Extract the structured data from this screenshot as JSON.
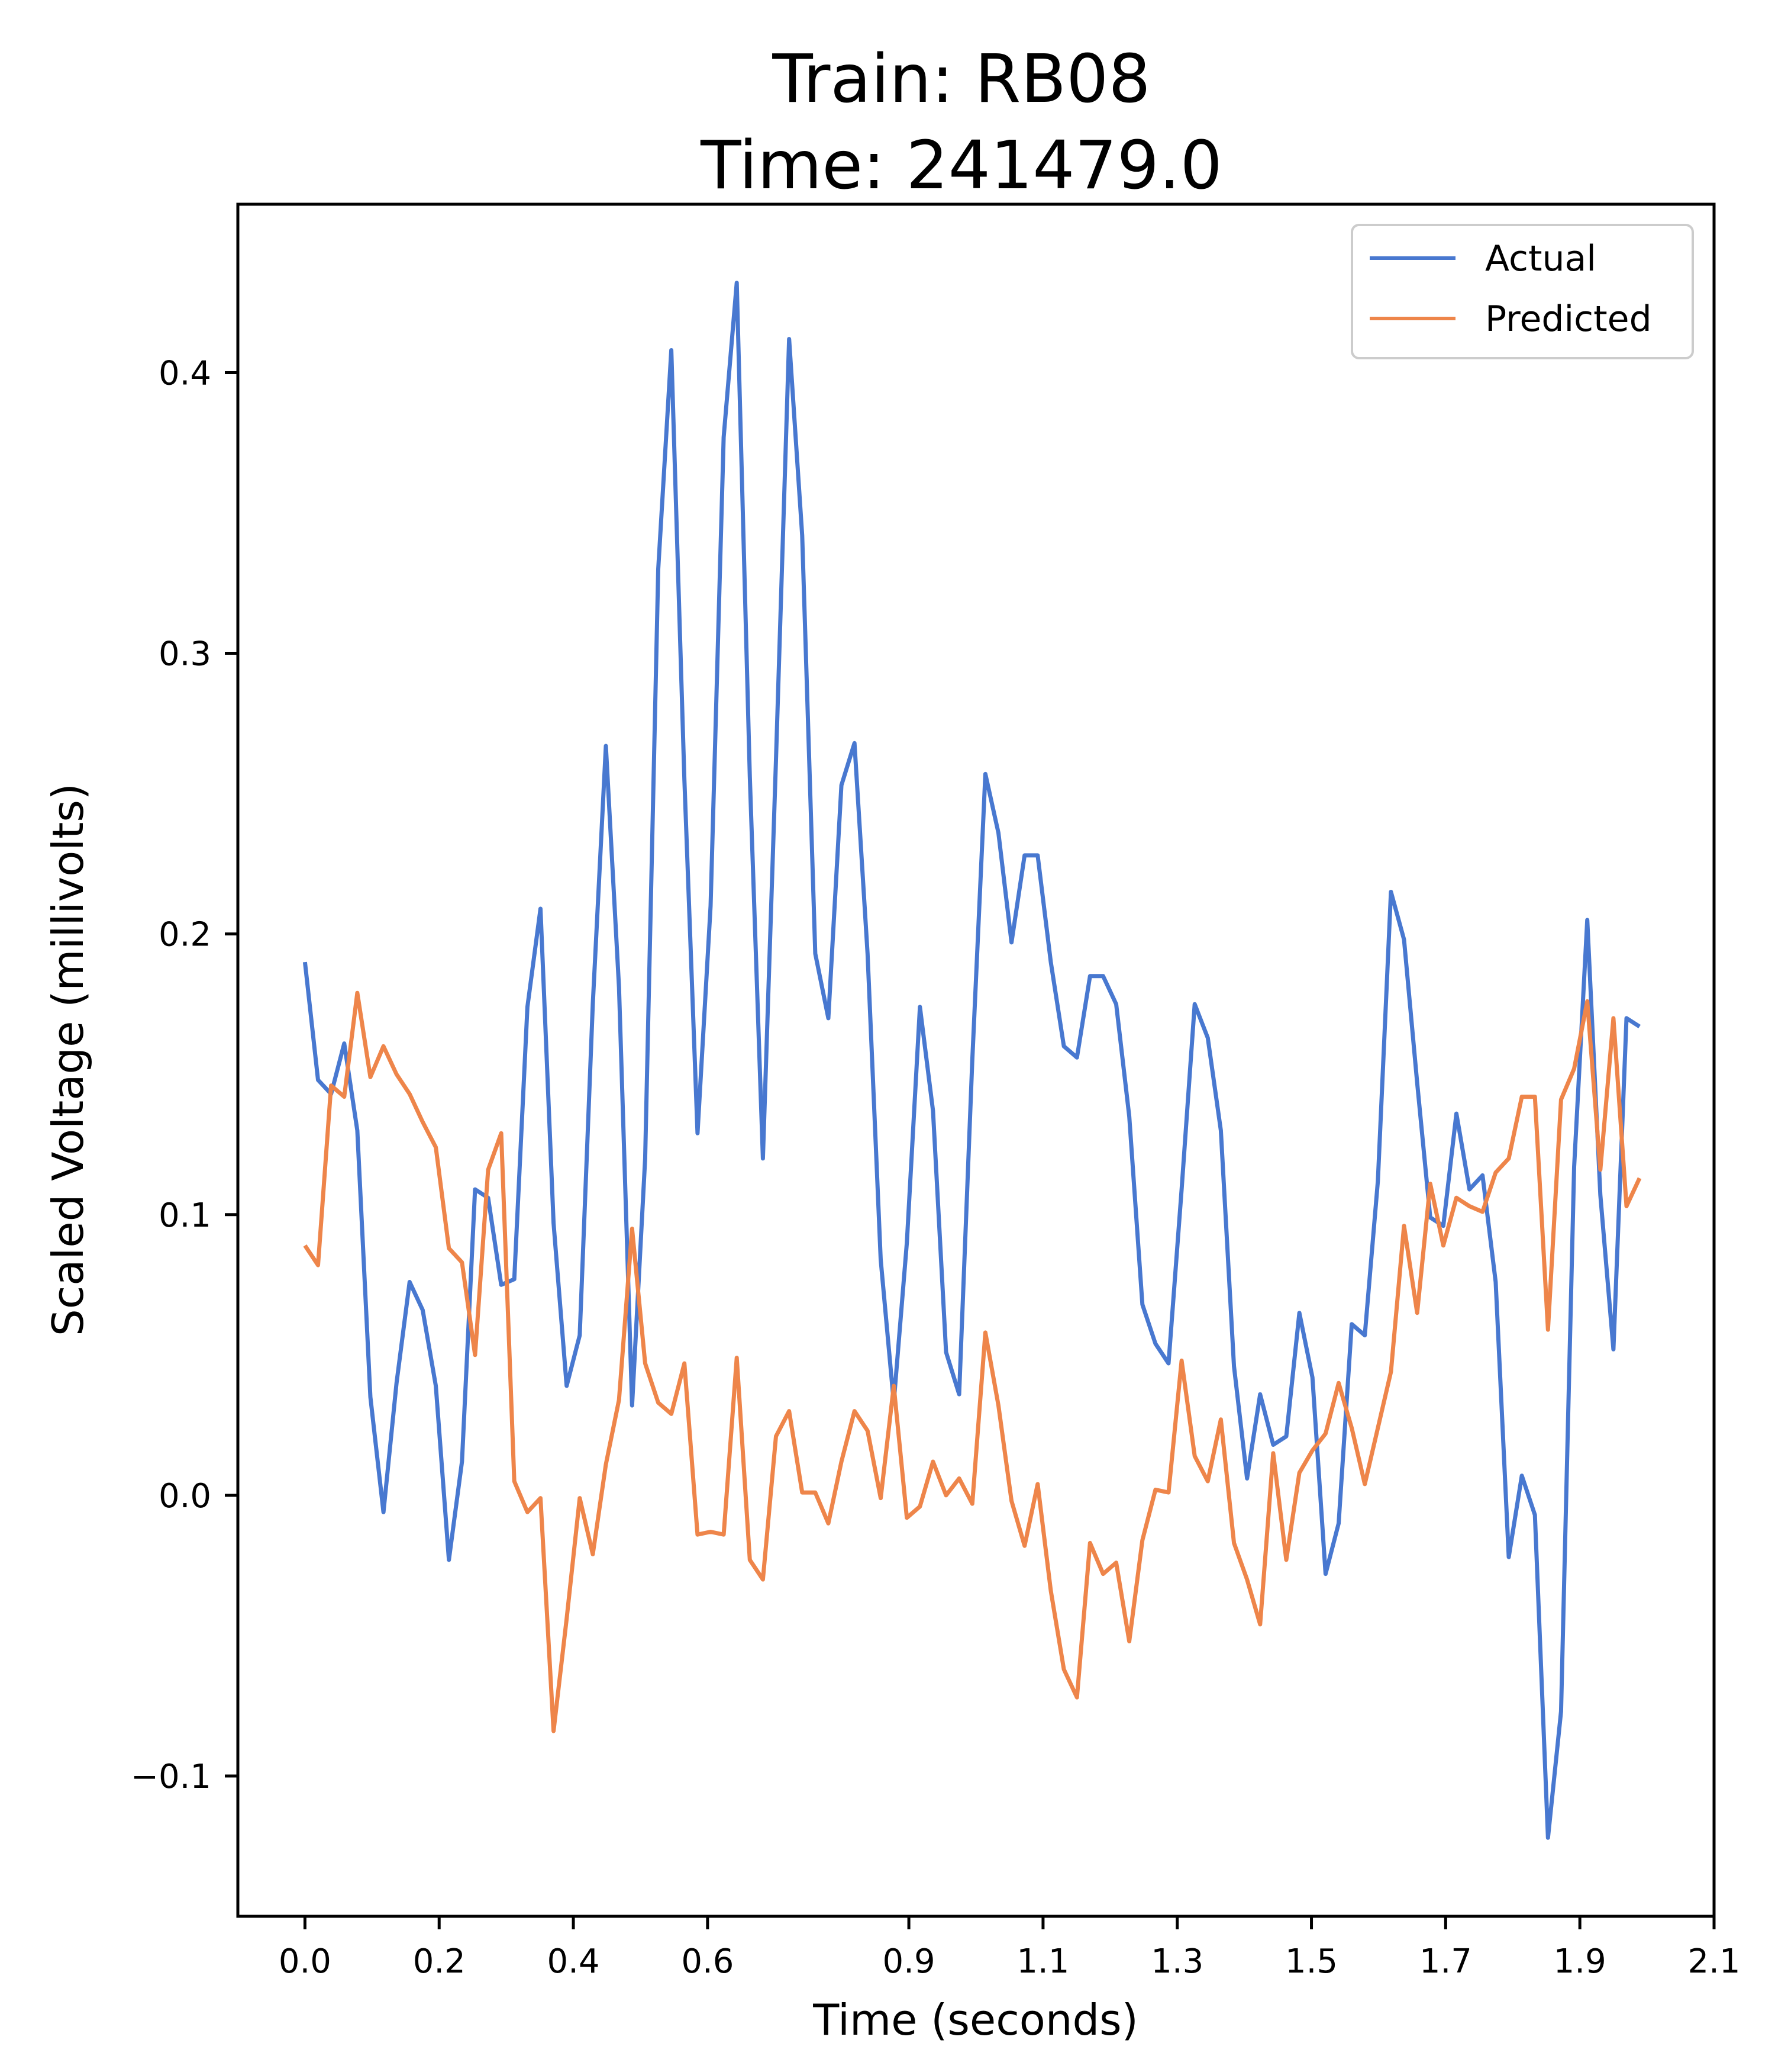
{
  "chart_data": {
    "type": "line",
    "title_line1": "Train: RB08",
    "title_line2": "Time: 241479.0",
    "xlabel": "Time (seconds)",
    "ylabel": "Scaled Voltage (millivolts)",
    "xlim": [
      -0.1,
      2.1
    ],
    "ylim": [
      -0.15,
      0.46
    ],
    "xticks": [
      0.0,
      0.2,
      0.4,
      0.6,
      0.9,
      1.1,
      1.3,
      1.5,
      1.7,
      1.9,
      2.1
    ],
    "xtick_labels": [
      "0.0",
      "0.2",
      "0.4",
      "0.6",
      "0.9",
      "1.1",
      "1.3",
      "1.5",
      "1.7",
      "1.9",
      "2.1"
    ],
    "yticks": [
      -0.1,
      0.0,
      0.1,
      0.2,
      0.3,
      0.4
    ],
    "ytick_labels": [
      "−0.1",
      "0.0",
      "0.1",
      "0.2",
      "0.3",
      "0.4"
    ],
    "legend_position": "top-right",
    "grid": false,
    "x_step": 0.0195,
    "series": [
      {
        "name": "Actual",
        "color": "#4878d0",
        "values": [
          0.19,
          0.148,
          0.143,
          0.161,
          0.13,
          0.035,
          -0.006,
          0.04,
          0.076,
          0.066,
          0.039,
          -0.023,
          0.012,
          0.109,
          0.106,
          0.075,
          0.077,
          0.174,
          0.209,
          0.097,
          0.039,
          0.057,
          0.175,
          0.267,
          0.181,
          0.032,
          0.12,
          0.33,
          0.408,
          0.255,
          0.129,
          0.21,
          0.377,
          0.432,
          0.256,
          0.12,
          0.262,
          0.412,
          0.342,
          0.193,
          0.17,
          0.253,
          0.268,
          0.193,
          0.084,
          0.033,
          0.09,
          0.174,
          0.137,
          0.051,
          0.036,
          0.155,
          0.257,
          0.236,
          0.197,
          0.228,
          0.228,
          0.19,
          0.16,
          0.156,
          0.185,
          0.185,
          0.175,
          0.135,
          0.068,
          0.054,
          0.047,
          0.109,
          0.175,
          0.163,
          0.13,
          0.046,
          0.006,
          0.036,
          0.018,
          0.021,
          0.065,
          0.042,
          -0.028,
          -0.01,
          0.061,
          0.057,
          0.112,
          0.215,
          0.198,
          0.147,
          0.099,
          0.096,
          0.136,
          0.109,
          0.114,
          0.076,
          -0.022,
          0.007,
          -0.007,
          -0.122,
          -0.077,
          0.117,
          0.205,
          0.107,
          0.052,
          0.17,
          0.167
        ]
      },
      {
        "name": "Predicted",
        "color": "#ee854a",
        "values": [
          0.089,
          0.082,
          0.146,
          0.142,
          0.179,
          0.149,
          0.16,
          0.15,
          0.143,
          0.133,
          0.124,
          0.088,
          0.083,
          0.05,
          0.116,
          0.129,
          0.005,
          -0.006,
          -0.001,
          -0.084,
          -0.044,
          -0.001,
          -0.021,
          0.011,
          0.034,
          0.095,
          0.047,
          0.033,
          0.029,
          0.047,
          -0.014,
          -0.013,
          -0.014,
          0.049,
          -0.023,
          -0.03,
          0.021,
          0.03,
          0.001,
          0.001,
          -0.01,
          0.012,
          0.03,
          0.023,
          -0.001,
          0.039,
          -0.008,
          -0.004,
          0.012,
          0.0,
          0.006,
          -0.003,
          0.058,
          0.032,
          -0.002,
          -0.018,
          0.004,
          -0.034,
          -0.062,
          -0.072,
          -0.017,
          -0.028,
          -0.024,
          -0.052,
          -0.016,
          0.002,
          0.001,
          0.048,
          0.014,
          0.005,
          0.027,
          -0.017,
          -0.03,
          -0.046,
          0.015,
          -0.023,
          0.008,
          0.016,
          0.022,
          0.04,
          0.024,
          0.004,
          0.024,
          0.044,
          0.096,
          0.065,
          0.111,
          0.089,
          0.106,
          0.103,
          0.101,
          0.115,
          0.12,
          0.142,
          0.142,
          0.059,
          0.141,
          0.152,
          0.176,
          0.116,
          0.17,
          0.103,
          0.113
        ]
      }
    ]
  }
}
